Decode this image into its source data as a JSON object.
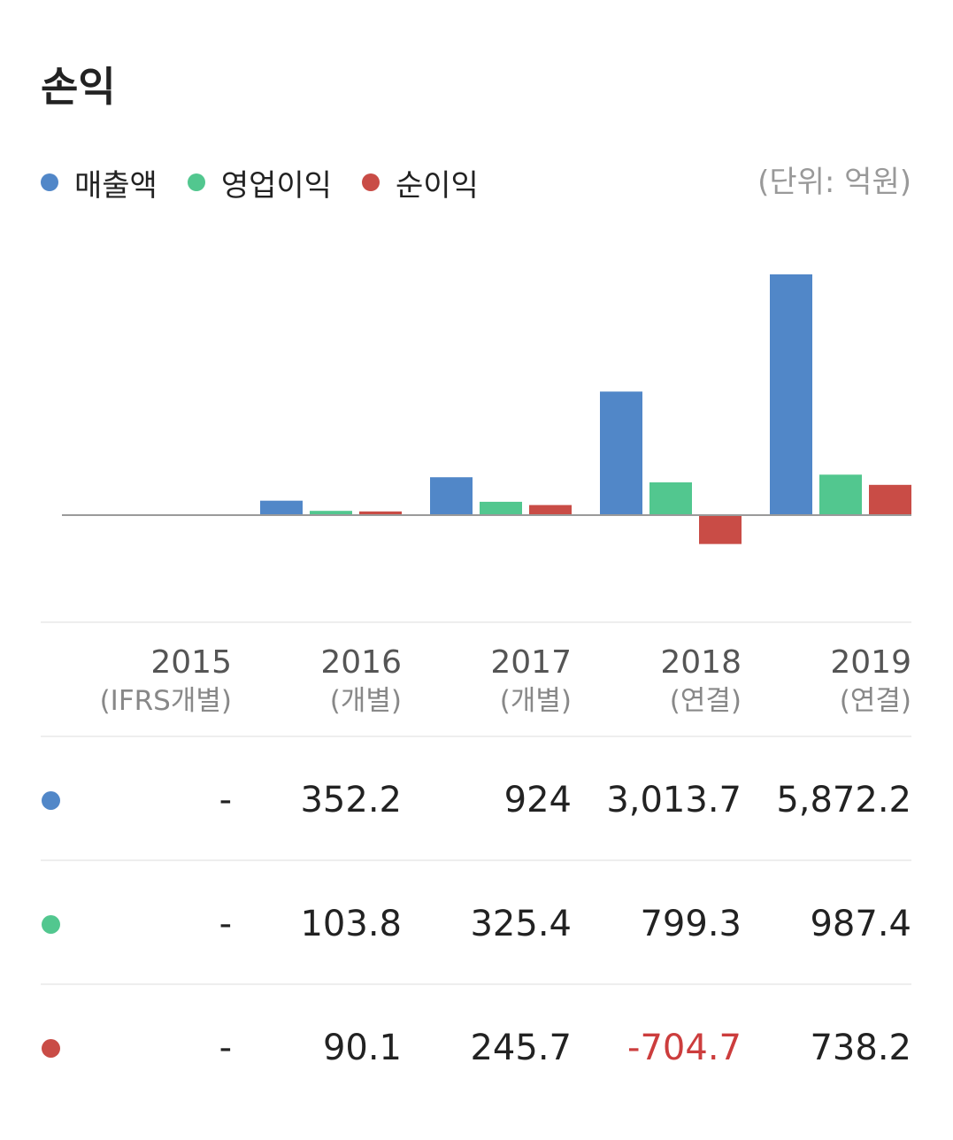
{
  "title": "손익",
  "unit": "(단위: 억원)",
  "colors": {
    "revenue": "#5187c8",
    "operating": "#52c78f",
    "net": "#c94c46",
    "negative_text": "#cc3d3d"
  },
  "legend": [
    {
      "label": "매출액",
      "color": "#5187c8"
    },
    {
      "label": "영업이익",
      "color": "#52c78f"
    },
    {
      "label": "순이익",
      "color": "#c94c46"
    }
  ],
  "years": [
    {
      "year": "2015",
      "sub": "(IFRS개별)"
    },
    {
      "year": "2016",
      "sub": "(개별)"
    },
    {
      "year": "2017",
      "sub": "(개별)"
    },
    {
      "year": "2018",
      "sub": "(연결)"
    },
    {
      "year": "2019",
      "sub": "(연결)"
    }
  ],
  "table_rows": [
    {
      "series": "매출액",
      "color": "#5187c8",
      "cells": [
        "-",
        "352.2",
        "924",
        "3,013.7",
        "5,872.2"
      ]
    },
    {
      "series": "영업이익",
      "color": "#52c78f",
      "cells": [
        "-",
        "103.8",
        "325.4",
        "799.3",
        "987.4"
      ]
    },
    {
      "series": "순이익",
      "color": "#c94c46",
      "cells": [
        "-",
        "90.1",
        "245.7",
        "-704.7",
        "738.2"
      ]
    }
  ],
  "chart_data": {
    "type": "bar",
    "categories": [
      "2015",
      "2016",
      "2017",
      "2018",
      "2019"
    ],
    "series": [
      {
        "name": "매출액",
        "color": "#5187c8",
        "values": [
          null,
          352.2,
          924,
          3013.7,
          5872.2
        ]
      },
      {
        "name": "영업이익",
        "color": "#52c78f",
        "values": [
          null,
          103.8,
          325.4,
          799.3,
          987.4
        ]
      },
      {
        "name": "순이익",
        "color": "#c94c46",
        "values": [
          null,
          90.1,
          245.7,
          -704.7,
          738.2
        ]
      }
    ],
    "title": "손익",
    "unit": "(단위: 억원)",
    "ylim": [
      -2500,
      6000
    ],
    "grid": false,
    "legend_position": "top-left"
  }
}
